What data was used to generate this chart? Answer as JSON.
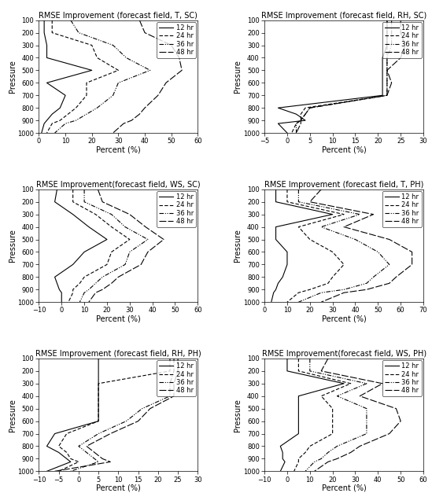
{
  "subplots": [
    {
      "title": "RMSE Improvement (forecast field, T, SC)",
      "xlabel": "Percent (%)",
      "ylabel": "Pressure",
      "xlim": [
        0,
        60
      ],
      "ylim": [
        1000,
        100
      ],
      "xticks": [
        0,
        10,
        20,
        30,
        40,
        50,
        60
      ],
      "series": [
        {
          "label": "12 hr",
          "style_idx": 0,
          "x": [
            2,
            2,
            3,
            3,
            20,
            3,
            10,
            8,
            5,
            3,
            2,
            1
          ],
          "y": [
            100,
            200,
            300,
            400,
            500,
            600,
            700,
            800,
            850,
            900,
            925,
            1000
          ]
        },
        {
          "label": "24 hr",
          "style_idx": 1,
          "x": [
            5,
            5,
            20,
            22,
            30,
            18,
            18,
            14,
            11,
            8,
            5,
            3
          ],
          "y": [
            100,
            200,
            300,
            400,
            500,
            600,
            700,
            800,
            850,
            900,
            925,
            1000
          ]
        },
        {
          "label": "36 hr",
          "style_idx": 2,
          "x": [
            12,
            15,
            28,
            33,
            42,
            30,
            28,
            22,
            18,
            14,
            10,
            6
          ],
          "y": [
            100,
            200,
            300,
            400,
            500,
            600,
            700,
            800,
            850,
            900,
            925,
            1000
          ]
        },
        {
          "label": "48 hr",
          "style_idx": 3,
          "x": [
            38,
            40,
            50,
            53,
            54,
            48,
            45,
            40,
            38,
            35,
            32,
            28
          ],
          "y": [
            100,
            200,
            300,
            400,
            500,
            600,
            700,
            800,
            850,
            900,
            925,
            1000
          ]
        }
      ]
    },
    {
      "title": "RMSE Improvement (forecast field, RH, SC)",
      "xlabel": "Percent (%)",
      "ylabel": "Pressure",
      "xlim": [
        -5,
        30
      ],
      "ylim": [
        1000,
        100
      ],
      "xticks": [
        -5,
        0,
        5,
        10,
        15,
        20,
        25,
        30
      ],
      "series": [
        {
          "label": "12 hr",
          "style_idx": 0,
          "x": [
            22,
            22,
            22,
            21,
            21,
            21,
            21,
            -2,
            2,
            4,
            -2,
            0
          ],
          "y": [
            100,
            200,
            300,
            400,
            500,
            600,
            700,
            800,
            850,
            900,
            925,
            1000
          ]
        },
        {
          "label": "24 hr",
          "style_idx": 1,
          "x": [
            22,
            22,
            22,
            22,
            22,
            22,
            22,
            4,
            3,
            3,
            2,
            1
          ],
          "y": [
            100,
            200,
            300,
            400,
            500,
            600,
            700,
            800,
            850,
            900,
            925,
            1000
          ]
        },
        {
          "label": "36 hr",
          "style_idx": 2,
          "x": [
            23,
            23,
            23,
            22,
            22,
            22,
            22,
            5,
            4,
            3,
            2,
            2
          ],
          "y": [
            100,
            200,
            300,
            400,
            500,
            600,
            700,
            800,
            850,
            900,
            925,
            1000
          ]
        },
        {
          "label": "48 hr",
          "style_idx": 3,
          "x": [
            25,
            25,
            26,
            25,
            22,
            23,
            22,
            5,
            4,
            3,
            3,
            2
          ],
          "y": [
            100,
            200,
            300,
            400,
            500,
            600,
            700,
            800,
            850,
            900,
            925,
            1000
          ]
        }
      ]
    },
    {
      "title": "RMSE Improvement(forecast field, WS, SC)",
      "xlabel": "Percent (%)",
      "ylabel": "Pressure",
      "xlim": [
        -10,
        60
      ],
      "ylim": [
        1000,
        100
      ],
      "xticks": [
        -10,
        0,
        10,
        20,
        30,
        40,
        50,
        60
      ],
      "series": [
        {
          "label": "12 hr",
          "style_idx": 0,
          "x": [
            -2,
            -3,
            5,
            12,
            20,
            10,
            5,
            -3,
            -2,
            -1,
            0,
            0
          ],
          "y": [
            100,
            200,
            300,
            400,
            500,
            600,
            700,
            800,
            850,
            900,
            925,
            1000
          ]
        },
        {
          "label": "24 hr",
          "style_idx": 1,
          "x": [
            5,
            5,
            15,
            22,
            30,
            22,
            20,
            10,
            8,
            5,
            5,
            3
          ],
          "y": [
            100,
            200,
            300,
            400,
            500,
            600,
            700,
            800,
            850,
            900,
            925,
            1000
          ]
        },
        {
          "label": "36 hr",
          "style_idx": 2,
          "x": [
            10,
            10,
            22,
            28,
            38,
            30,
            28,
            18,
            15,
            12,
            10,
            8
          ],
          "y": [
            100,
            200,
            300,
            400,
            500,
            600,
            700,
            800,
            850,
            900,
            925,
            1000
          ]
        },
        {
          "label": "48 hr",
          "style_idx": 3,
          "x": [
            16,
            18,
            30,
            37,
            45,
            38,
            35,
            25,
            22,
            18,
            15,
            12
          ],
          "y": [
            100,
            200,
            300,
            400,
            500,
            600,
            700,
            800,
            850,
            900,
            925,
            1000
          ]
        }
      ]
    },
    {
      "title": "RMSE Improvement (forecast field, T, PH)",
      "xlabel": "Percent (%)",
      "ylabel": "Pressure",
      "xlim": [
        0,
        70
      ],
      "ylim": [
        1000,
        100
      ],
      "xticks": [
        0,
        10,
        20,
        30,
        40,
        50,
        60,
        70
      ],
      "series": [
        {
          "label": "12 hr",
          "style_idx": 0,
          "x": [
            5,
            5,
            30,
            5,
            5,
            10,
            10,
            8,
            6,
            5,
            4,
            3
          ],
          "y": [
            100,
            200,
            300,
            400,
            500,
            600,
            700,
            800,
            850,
            900,
            925,
            1000
          ]
        },
        {
          "label": "24 hr",
          "style_idx": 1,
          "x": [
            10,
            10,
            35,
            15,
            20,
            30,
            35,
            30,
            28,
            20,
            15,
            10
          ],
          "y": [
            100,
            200,
            300,
            400,
            500,
            600,
            700,
            800,
            850,
            900,
            925,
            1000
          ]
        },
        {
          "label": "36 hr",
          "style_idx": 2,
          "x": [
            15,
            15,
            42,
            25,
            40,
            50,
            55,
            48,
            45,
            35,
            25,
            15
          ],
          "y": [
            100,
            200,
            300,
            400,
            500,
            600,
            700,
            800,
            850,
            900,
            925,
            1000
          ]
        },
        {
          "label": "48 hr",
          "style_idx": 3,
          "x": [
            25,
            20,
            48,
            35,
            55,
            65,
            65,
            58,
            55,
            45,
            35,
            25
          ],
          "y": [
            100,
            200,
            300,
            400,
            500,
            600,
            700,
            800,
            850,
            900,
            925,
            1000
          ]
        }
      ]
    },
    {
      "title": "RMSE Improvement (forecast field, RH, PH)",
      "xlabel": "Percent (%)",
      "ylabel": "Pressure",
      "xlim": [
        -10,
        30
      ],
      "ylim": [
        1000,
        100
      ],
      "xticks": [
        -10,
        -5,
        0,
        5,
        10,
        15,
        20,
        25,
        30
      ],
      "series": [
        {
          "label": "12 hr",
          "style_idx": 0,
          "x": [
            5,
            5,
            5,
            5,
            5,
            5,
            -6,
            -8,
            -5,
            -3,
            -2,
            -8
          ],
          "y": [
            100,
            200,
            300,
            400,
            500,
            600,
            700,
            800,
            850,
            900,
            925,
            1000
          ]
        },
        {
          "label": "24 hr",
          "style_idx": 1,
          "x": [
            23,
            23,
            5,
            5,
            5,
            5,
            -3,
            -5,
            -3,
            -2,
            0,
            -5
          ],
          "y": [
            100,
            200,
            300,
            400,
            500,
            600,
            700,
            800,
            850,
            900,
            925,
            1000
          ]
        },
        {
          "label": "36 hr",
          "style_idx": 2,
          "x": [
            24,
            24,
            23,
            23,
            16,
            12,
            5,
            0,
            2,
            4,
            5,
            -2
          ],
          "y": [
            100,
            200,
            300,
            400,
            500,
            600,
            700,
            800,
            850,
            900,
            925,
            1000
          ]
        },
        {
          "label": "48 hr",
          "style_idx": 3,
          "x": [
            25,
            25,
            24,
            24,
            18,
            15,
            8,
            2,
            4,
            6,
            8,
            -6
          ],
          "y": [
            100,
            200,
            300,
            400,
            500,
            600,
            700,
            800,
            850,
            900,
            925,
            1000
          ]
        }
      ]
    },
    {
      "title": "RMSE Improvement(forecast field, WS, PH)",
      "xlabel": "Percent (%)",
      "ylabel": "Pressure",
      "xlim": [
        -10,
        60
      ],
      "ylim": [
        1000,
        100
      ],
      "xticks": [
        -10,
        0,
        10,
        20,
        30,
        40,
        50,
        60
      ],
      "series": [
        {
          "label": "12 hr",
          "style_idx": 0,
          "x": [
            0,
            0,
            25,
            5,
            5,
            5,
            5,
            -3,
            -2,
            -2,
            -1,
            -3
          ],
          "y": [
            100,
            200,
            300,
            400,
            500,
            600,
            700,
            800,
            850,
            900,
            925,
            1000
          ]
        },
        {
          "label": "24 hr",
          "style_idx": 1,
          "x": [
            5,
            5,
            28,
            15,
            20,
            20,
            20,
            10,
            8,
            5,
            5,
            3
          ],
          "y": [
            100,
            200,
            300,
            400,
            500,
            600,
            700,
            800,
            850,
            900,
            925,
            1000
          ]
        },
        {
          "label": "36 hr",
          "style_idx": 2,
          "x": [
            10,
            10,
            35,
            22,
            35,
            35,
            35,
            22,
            18,
            15,
            12,
            8
          ],
          "y": [
            100,
            200,
            300,
            400,
            500,
            600,
            700,
            800,
            850,
            900,
            925,
            1000
          ]
        },
        {
          "label": "48 hr",
          "style_idx": 3,
          "x": [
            18,
            15,
            42,
            32,
            48,
            50,
            45,
            32,
            28,
            22,
            18,
            12
          ],
          "y": [
            100,
            200,
            300,
            400,
            500,
            600,
            700,
            800,
            850,
            900,
            925,
            1000
          ]
        }
      ]
    }
  ],
  "yticks": [
    100,
    200,
    300,
    400,
    500,
    600,
    700,
    800,
    900,
    1000
  ],
  "line_color": "black",
  "legend_fontsize": 6,
  "title_fontsize": 7,
  "tick_fontsize": 6,
  "label_fontsize": 7
}
